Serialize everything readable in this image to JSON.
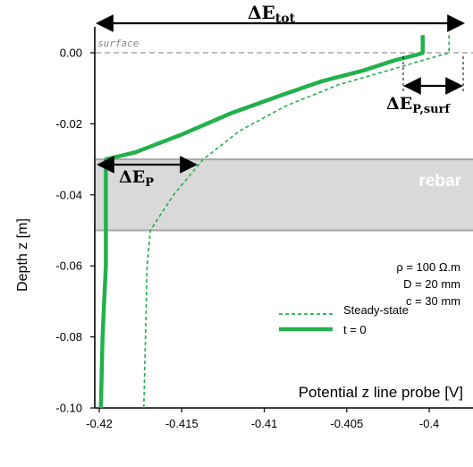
{
  "chart_data": {
    "type": "line",
    "xlabel": "Potential z line probe [V]",
    "ylabel": "Depth z [m]",
    "xlim": [
      -0.42,
      -0.397
    ],
    "ylim": [
      -0.1,
      0.007
    ],
    "x_ticks": [
      "-0.42",
      "-0.415",
      "-0.41",
      "-0.405",
      "-0.4"
    ],
    "y_ticks": [
      "0.00",
      "-0.02",
      "-0.04",
      "-0.06",
      "-0.08",
      "-0.10"
    ],
    "grid": false,
    "legend_position": "bottom-right",
    "series": [
      {
        "name": "Steady-state",
        "style": "dashed",
        "color": "#22b14c",
        "points": [
          [
            -0.4173,
            -0.1
          ],
          [
            -0.4172,
            -0.08
          ],
          [
            -0.4171,
            -0.06
          ],
          [
            -0.4169,
            -0.05
          ],
          [
            -0.4155,
            -0.04
          ],
          [
            -0.4137,
            -0.03
          ],
          [
            -0.4115,
            -0.022
          ],
          [
            -0.4087,
            -0.015
          ],
          [
            -0.4055,
            -0.009
          ],
          [
            -0.4025,
            -0.005
          ],
          [
            -0.4003,
            -0.002
          ],
          [
            -0.3988,
            0.0
          ],
          [
            -0.3988,
            0.005
          ]
        ]
      },
      {
        "name": "t = 0",
        "style": "solid",
        "color": "#22b14c",
        "points": [
          [
            -0.4199,
            -0.1
          ],
          [
            -0.4198,
            -0.08
          ],
          [
            -0.4197,
            -0.07
          ],
          [
            -0.4196,
            -0.06
          ],
          [
            -0.4196,
            -0.05
          ],
          [
            -0.4196,
            -0.04
          ],
          [
            -0.4196,
            -0.03
          ],
          [
            -0.4178,
            -0.028
          ],
          [
            -0.415,
            -0.023
          ],
          [
            -0.412,
            -0.017
          ],
          [
            -0.409,
            -0.012
          ],
          [
            -0.4065,
            -0.008
          ],
          [
            -0.404,
            -0.005
          ],
          [
            -0.402,
            -0.002
          ],
          [
            -0.4007,
            -0.0005
          ],
          [
            -0.4004,
            0.0
          ],
          [
            -0.4004,
            0.005
          ]
        ]
      }
    ],
    "annotations": {
      "surface_label": "surface",
      "rebar_label": "rebar",
      "rebar_zone": [
        -0.05,
        -0.03
      ],
      "delta_tot_main": "ΔE",
      "delta_tot_sub": "tot",
      "delta_p_main": "ΔE",
      "delta_p_sub": "P",
      "delta_psurf_main": "ΔE",
      "delta_psurf_sub": "P,surf",
      "params": [
        "ρ = 100 Ω.m",
        "D = 20 mm",
        "c = 30 mm"
      ]
    },
    "colors": {
      "curve": "#22b14c",
      "rebar_fill": "#d9d9d9",
      "rebar_border": "#a6a6a6",
      "surface_line": "#999999"
    }
  }
}
